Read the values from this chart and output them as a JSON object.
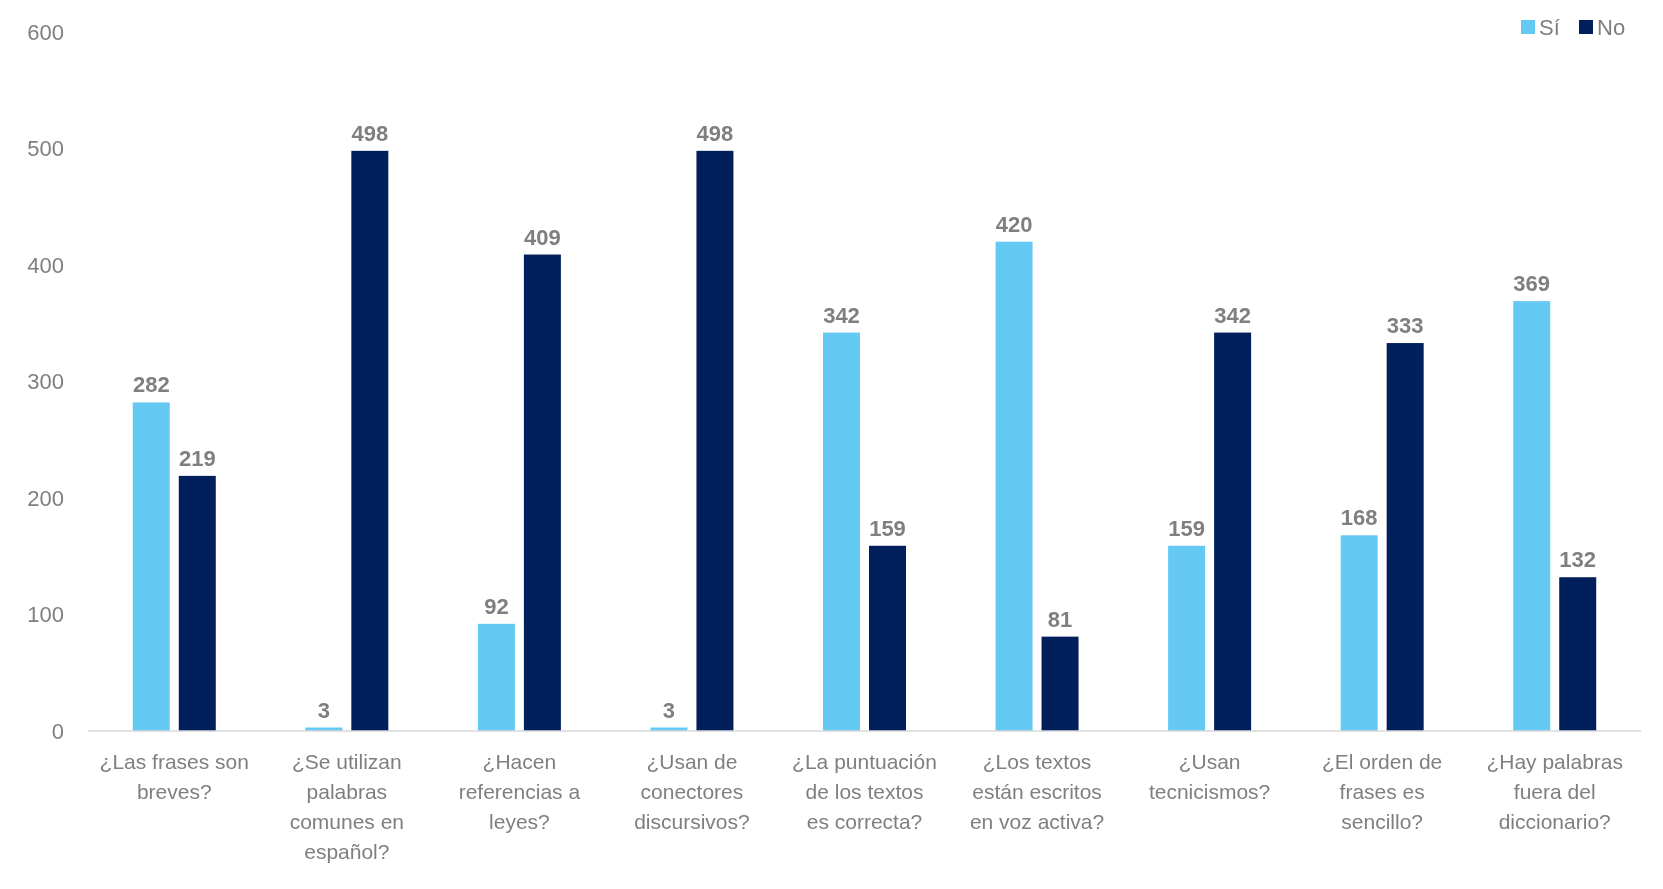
{
  "chart_data": {
    "type": "bar",
    "categories": [
      "¿Las frases son breves?",
      "¿Se utilizan palabras comunes en español?",
      "¿Hacen referencias a leyes?",
      "¿Usan de conectores discursivos?",
      "¿La puntuación de los textos es correcta?",
      "¿Los textos están escritos en voz activa?",
      "¿Usan tecnicismos?",
      "¿El orden de frases es sencillo?",
      "¿Hay palabras fuera del diccionario?"
    ],
    "series": [
      {
        "name": "Sí",
        "color": "#64caf3",
        "values": [
          282,
          3,
          92,
          3,
          342,
          420,
          159,
          168,
          369
        ]
      },
      {
        "name": "No",
        "color": "#001f5b",
        "values": [
          219,
          498,
          409,
          498,
          159,
          81,
          342,
          333,
          132
        ]
      }
    ],
    "ylim": [
      0,
      600
    ],
    "yticks": [
      0,
      100,
      200,
      300,
      400,
      500,
      600
    ],
    "grid": false,
    "legend": "top right",
    "data_labels": true
  }
}
